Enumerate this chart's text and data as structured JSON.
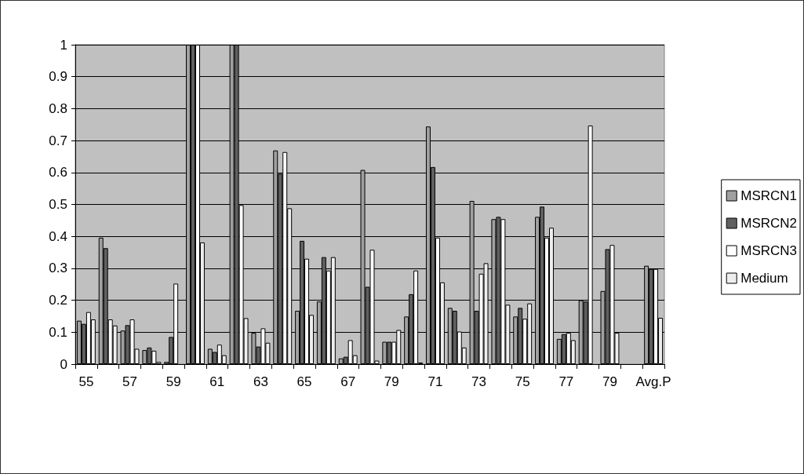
{
  "chart_data": {
    "type": "bar",
    "categories": [
      "55",
      null,
      "57",
      null,
      "59",
      null,
      "61",
      null,
      "63",
      null,
      "65",
      null,
      "67",
      null,
      "79",
      null,
      "71",
      null,
      "73",
      null,
      "75",
      null,
      "77",
      null,
      "79",
      null,
      "Avg.P"
    ],
    "series": [
      {
        "name": "MSRCN1",
        "color": "#a0a0a0",
        "values": [
          0.136,
          0.396,
          0.105,
          0.044,
          0.007,
          1,
          0.048,
          1,
          0.098,
          0.669,
          0.167,
          0.196,
          0.018,
          0.608,
          0.07,
          0.149,
          0.744,
          0.176,
          0.511,
          0.454,
          0.149,
          0.461,
          0.079,
          0.2,
          0.229,
          null,
          0.308
        ]
      },
      {
        "name": "MSRCN2",
        "color": "#606060",
        "values": [
          0.126,
          0.363,
          0.122,
          0.052,
          0.085,
          1,
          0.038,
          1,
          0.055,
          0.596,
          0.386,
          0.335,
          0.023,
          0.242,
          0.07,
          0.219,
          0.617,
          0.167,
          0.167,
          0.461,
          0.176,
          0.493,
          0.094,
          0.196,
          0.36,
          null,
          0.298
        ]
      },
      {
        "name": "MSRCN3",
        "color": "#ffffff",
        "values": [
          0.163,
          0.14,
          0.14,
          0.042,
          0.252,
          1,
          0.061,
          0.498,
          0.112,
          0.664,
          0.33,
          0.293,
          0.075,
          0.358,
          0.07,
          0.293,
          0.396,
          0.102,
          0.283,
          0.454,
          0.142,
          0.396,
          0.098,
          0.747,
          0.373,
          null,
          0.298
        ]
      },
      {
        "name": "Medium",
        "color": "#eeeeee",
        "values": [
          0.14,
          0.121,
          0.048,
          0.007,
          null,
          0.381,
          0.028,
          0.144,
          0.067,
          0.488,
          0.154,
          0.335,
          0.028,
          0.011,
          0.107,
          0.005,
          0.256,
          0.052,
          0.316,
          0.186,
          0.19,
          0.427,
          0.075,
          null,
          0.098,
          null,
          0.145
        ]
      }
    ],
    "ylim": [
      0,
      1
    ],
    "yticks": [
      0,
      0.1,
      0.2,
      0.3,
      0.4,
      0.5,
      0.6,
      0.7,
      0.8,
      0.9,
      1
    ],
    "grid": "y",
    "legend": "right"
  }
}
